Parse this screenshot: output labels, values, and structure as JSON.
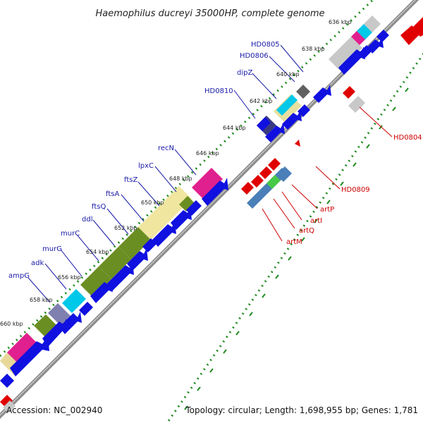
{
  "title": "Haemophilus ducreyi 35000HP, complete genome",
  "footer": {
    "accession": "Accession: NC_002940",
    "summary": "Topology: circular; Length: 1,698,955 bp; Genes: 1,781"
  },
  "ticks": {
    "t636": "636 kbp",
    "t638": "638 kbp",
    "t640": "640 kbp",
    "t642": "642 kbp",
    "t644": "644 kbp",
    "t646": "646 kbp",
    "t648": "648 kbp",
    "t650": "650 kbp",
    "t652": "652 kbp",
    "t654": "654 kbp",
    "t656": "656 kbp",
    "t658": "658 kbp",
    "t660": "660 kbp"
  },
  "genes_outer": {
    "HD0805": "HD0805",
    "HD0806": "HD0806",
    "dipZ": "dipZ",
    "HD0810": "HD0810",
    "recN": "recN",
    "lpxC": "lpxC",
    "ftsZ": "ftsZ",
    "ftsA": "ftsA",
    "ftsQ": "ftsQ",
    "ddl": "ddl",
    "murC": "murC",
    "murG": "murG",
    "adk": "adk",
    "ampG": "ampG"
  },
  "genes_inner": {
    "HD0804": "HD0804",
    "HD0809": "HD0809",
    "artP": "artP",
    "artI": "artI",
    "artQ": "artQ",
    "artM": "artM"
  },
  "colors": {
    "backbone": "#8c8c8c",
    "tick_mark": "#1e8a1e",
    "forward_cds": "#1010e0",
    "reverse_cds": "#e00000",
    "outer_label": "#1a1aa8",
    "inner_label": "#cc0000"
  }
}
